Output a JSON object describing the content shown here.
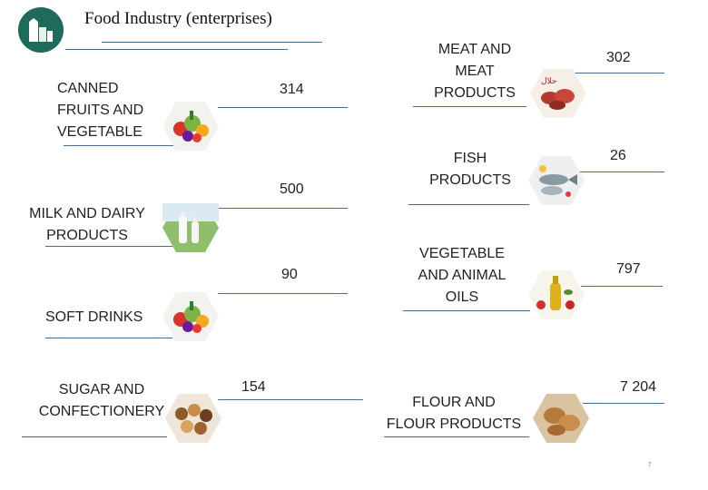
{
  "header": {
    "title": "Food Industry (enterprises)"
  },
  "logo": {
    "icon": "factory-icon",
    "color": "#1e6b5c"
  },
  "items": {
    "canned": {
      "label_lines": [
        "CANNED",
        "FRUITS AND",
        "VEGETABLE"
      ],
      "value": "314",
      "icon": "fruits-vegetables-icon"
    },
    "milk": {
      "label_lines": [
        "MILK AND DAIRY",
        "PRODUCTS"
      ],
      "value": "500",
      "icon": "milk-bottles-icon"
    },
    "soft": {
      "label_lines": [
        "SOFT DRINKS"
      ],
      "value": "90",
      "icon": "fruits-vegetables-icon"
    },
    "sugar": {
      "label_lines": [
        "SUGAR AND",
        "CONFECTIONERY"
      ],
      "value": "154",
      "icon": "pastries-icon"
    },
    "meat": {
      "label_lines": [
        "MEAT AND",
        "MEAT",
        "PRODUCTS"
      ],
      "value": "302",
      "icon": "meat-icon"
    },
    "fish": {
      "label_lines": [
        "FISH",
        "PRODUCTS"
      ],
      "value": "26",
      "icon": "fish-icon"
    },
    "oils": {
      "label_lines": [
        "VEGETABLE",
        "AND ANIMAL",
        "OILS"
      ],
      "value": "797",
      "icon": "oil-bottle-icon"
    },
    "flour": {
      "label_lines": [
        "FLOUR AND",
        "FLOUR PRODUCTS"
      ],
      "value": "7 204",
      "icon": "bread-icon"
    }
  },
  "footer": {
    "page_number": "7"
  }
}
